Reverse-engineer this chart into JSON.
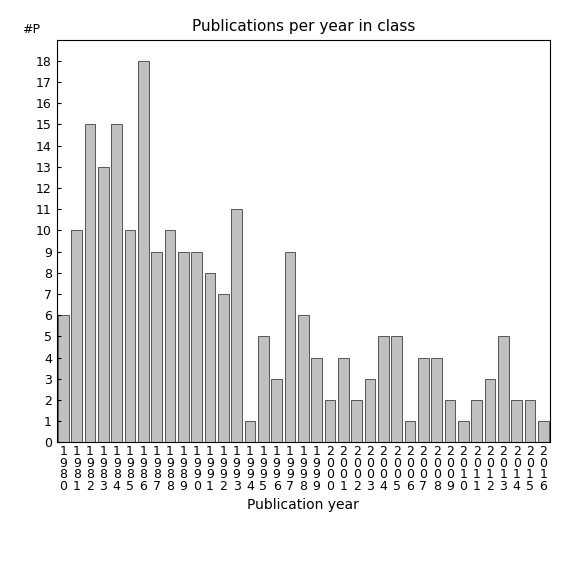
{
  "title": "Publications per year in class",
  "xlabel": "Publication year",
  "ylabel": "#P",
  "bar_color": "#c0c0c0",
  "bar_edgecolor": "#404040",
  "categories": [
    "1\n9\n8\n0",
    "1\n9\n8\n1",
    "1\n9\n8\n2",
    "1\n9\n8\n3",
    "1\n9\n8\n4",
    "1\n9\n8\n5",
    "1\n9\n8\n6",
    "1\n9\n8\n7",
    "1\n9\n8\n8",
    "1\n9\n8\n9",
    "1\n9\n9\n0",
    "1\n9\n9\n1",
    "1\n9\n9\n2",
    "1\n9\n9\n3",
    "1\n9\n9\n4",
    "1\n9\n9\n5",
    "1\n9\n9\n6",
    "1\n9\n9\n7",
    "1\n9\n9\n8",
    "1\n9\n9\n9",
    "2\n0\n0\n0",
    "2\n0\n0\n1",
    "2\n0\n0\n2",
    "2\n0\n0\n3",
    "2\n0\n0\n4",
    "2\n0\n0\n5",
    "2\n0\n0\n6",
    "2\n0\n0\n7",
    "2\n0\n0\n8",
    "2\n0\n0\n9",
    "2\n0\n1\n0",
    "2\n0\n1\n1",
    "2\n0\n1\n2",
    "2\n0\n1\n3",
    "2\n0\n1\n4",
    "2\n0\n1\n5",
    "2\n0\n1\n6"
  ],
  "values": [
    6,
    10,
    15,
    13,
    15,
    10,
    18,
    9,
    10,
    9,
    9,
    8,
    7,
    11,
    1,
    5,
    3,
    9,
    6,
    4,
    2,
    4,
    2,
    3,
    5,
    5,
    1,
    4,
    4,
    2,
    1,
    2,
    3,
    5,
    2,
    2,
    1
  ],
  "ylim": [
    0,
    19
  ],
  "yticks": [
    0,
    1,
    2,
    3,
    4,
    5,
    6,
    7,
    8,
    9,
    10,
    11,
    12,
    13,
    14,
    15,
    16,
    17,
    18
  ],
  "background_color": "#ffffff",
  "title_fontsize": 11,
  "xlabel_fontsize": 10,
  "tick_fontsize": 9
}
